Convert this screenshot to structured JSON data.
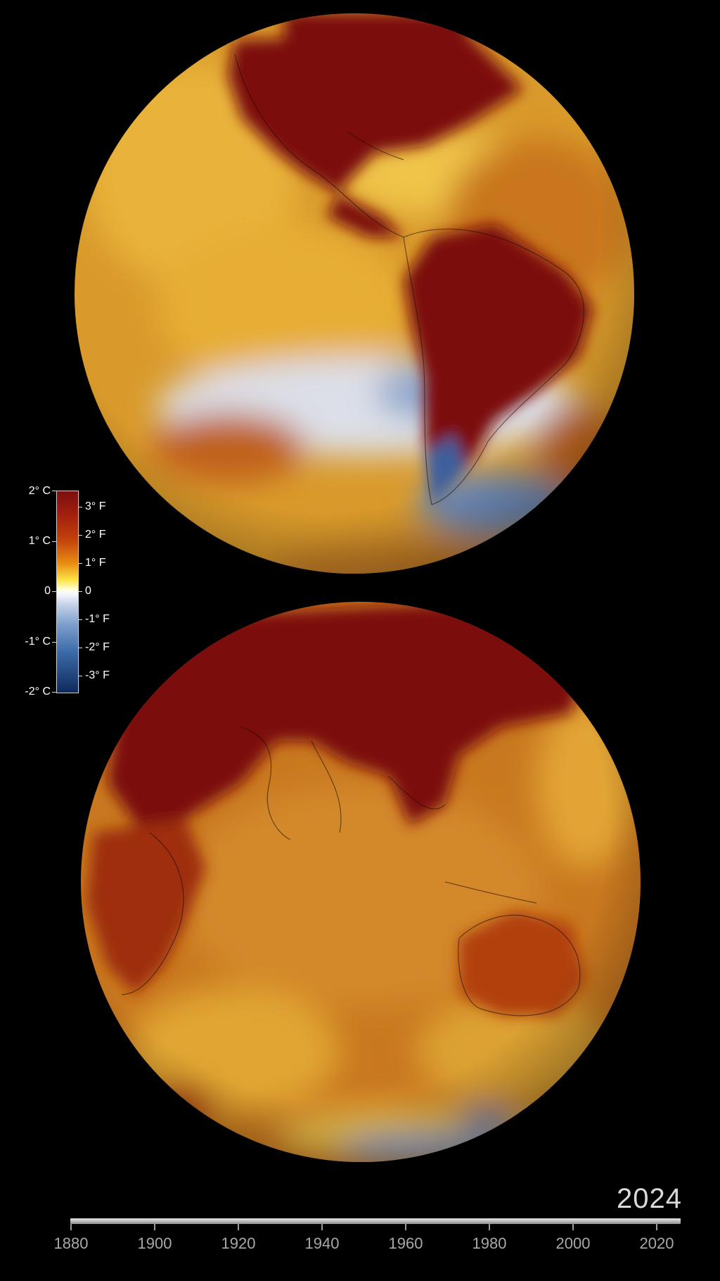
{
  "legend": {
    "celsius": [
      {
        "label": "2° C",
        "value": 2
      },
      {
        "label": "1° C",
        "value": 1
      },
      {
        "label": "0",
        "value": 0
      },
      {
        "label": "-1° C",
        "value": -1
      },
      {
        "label": "-2° C",
        "value": -2
      }
    ],
    "fahrenheit": [
      {
        "label": "3° F",
        "value": 3
      },
      {
        "label": "2° F",
        "value": 2
      },
      {
        "label": "1° F",
        "value": 1
      },
      {
        "label": "0",
        "value": 0
      },
      {
        "label": "-1° F",
        "value": -1
      },
      {
        "label": "-2° F",
        "value": -2
      },
      {
        "label": "-3° F",
        "value": -3
      }
    ],
    "colors": {
      "hot": "#7a0f0f",
      "warm": "#c2410c",
      "mild": "#fde245",
      "neutral": "#ffffff",
      "cool": "#7d9fcd",
      "cold": "#0e2a5c"
    }
  },
  "timeline": {
    "current_year": "2024",
    "ticks": [
      "1880",
      "1900",
      "1920",
      "1940",
      "1960",
      "1980",
      "2000",
      "2020"
    ],
    "progress": 1.0
  },
  "globes": [
    {
      "name": "western-hemisphere",
      "regions": [
        "North America",
        "South America",
        "Pacific Ocean",
        "Atlantic Ocean"
      ]
    },
    {
      "name": "eastern-hemisphere",
      "regions": [
        "Asia",
        "Africa",
        "Australia",
        "Indian Ocean"
      ]
    }
  ]
}
